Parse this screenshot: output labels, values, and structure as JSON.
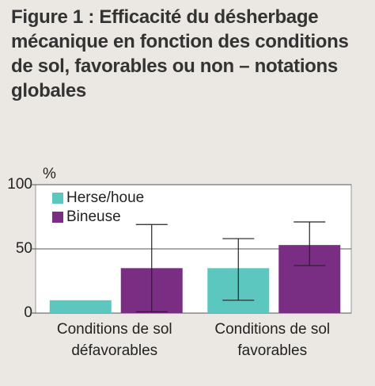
{
  "chart_data": {
    "type": "bar",
    "title": "Figure 1 : Efficacité du désherbage mécanique en fonction des conditions de sol, favorables ou non – notations globales",
    "y_label": "%",
    "categories": [
      "Conditions de sol défavorables",
      "Conditions de sol favorables"
    ],
    "series": [
      {
        "name": "Herse/houe",
        "color": "#5cc7bf",
        "values": [
          10,
          35
        ],
        "lower": [
          null,
          10
        ],
        "upper": [
          null,
          58
        ]
      },
      {
        "name": "Bineuse",
        "color": "#7a2e83",
        "values": [
          35,
          53
        ],
        "lower": [
          1,
          37
        ],
        "upper": [
          69,
          71
        ]
      }
    ],
    "ylim": [
      0,
      100
    ],
    "yticks": [
      0,
      50,
      100
    ],
    "grid": true,
    "legend": "top-left"
  }
}
